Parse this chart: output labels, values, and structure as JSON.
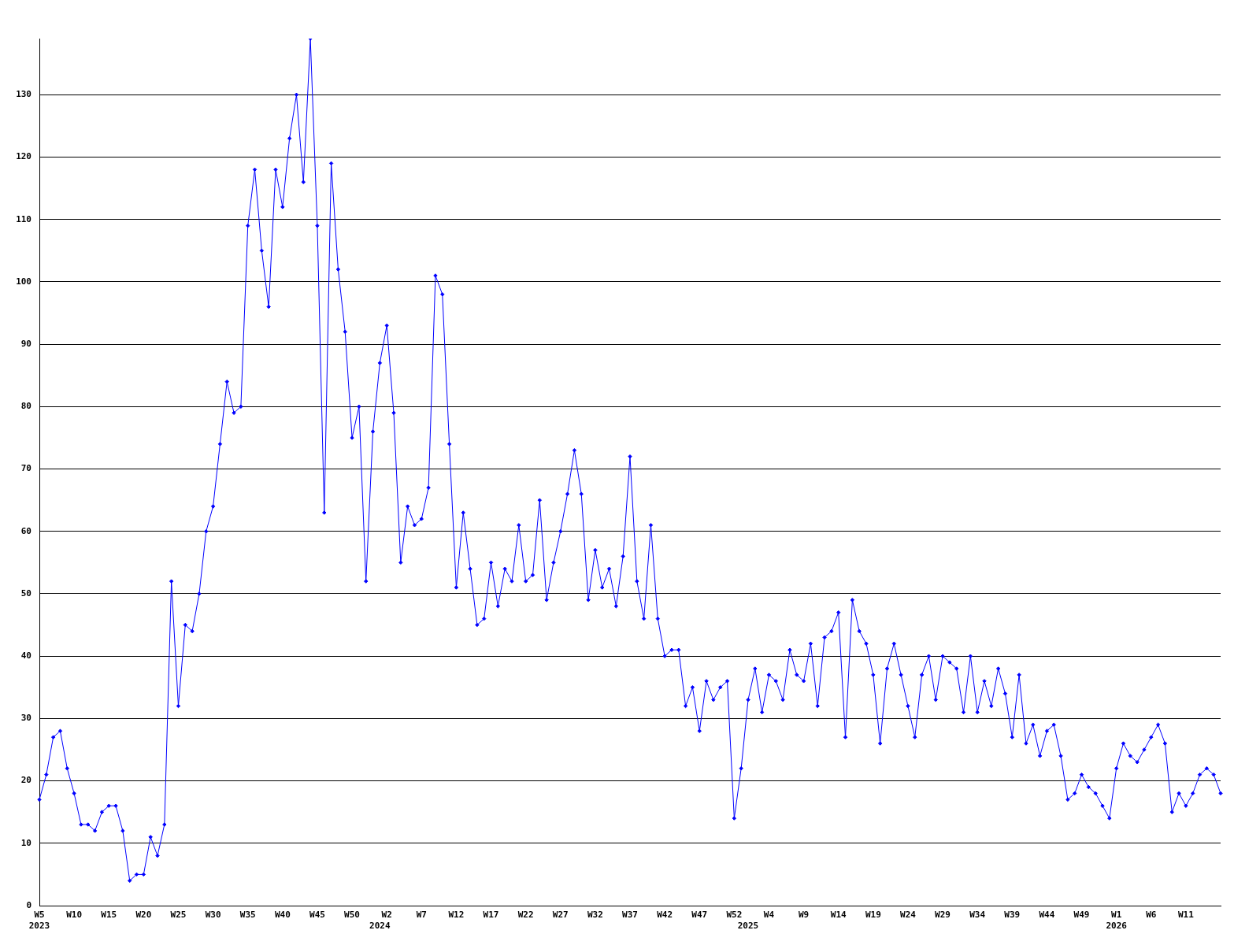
{
  "chart_data": {
    "type": "line",
    "categories": [
      "W5\n2023",
      null,
      null,
      null,
      null,
      "W10",
      null,
      null,
      null,
      null,
      "W15",
      null,
      null,
      null,
      null,
      "W20",
      null,
      null,
      null,
      null,
      "W25",
      null,
      null,
      null,
      null,
      "W30",
      null,
      null,
      null,
      null,
      "W35",
      null,
      null,
      null,
      null,
      "W40",
      null,
      null,
      null,
      null,
      "W45",
      null,
      null,
      null,
      null,
      "W50",
      null,
      null,
      null,
      "\n2024",
      "W2",
      null,
      null,
      null,
      null,
      "W7",
      null,
      null,
      null,
      null,
      "W12",
      null,
      null,
      null,
      null,
      "W17",
      null,
      null,
      null,
      null,
      "W22",
      null,
      null,
      null,
      null,
      "W27",
      null,
      null,
      null,
      null,
      "W32",
      null,
      null,
      null,
      null,
      "W37",
      null,
      null,
      null,
      null,
      "W42",
      null,
      null,
      null,
      null,
      "W47",
      null,
      null,
      null,
      null,
      "W52",
      null,
      "\n2025",
      null,
      null,
      "W4",
      null,
      null,
      null,
      null,
      "W9",
      null,
      null,
      null,
      null,
      "W14",
      null,
      null,
      null,
      null,
      "W19",
      null,
      null,
      null,
      null,
      "W24",
      null,
      null,
      null,
      null,
      "W29",
      null,
      null,
      null,
      null,
      "W34",
      null,
      null,
      null,
      null,
      "W39",
      null,
      null,
      null,
      null,
      "W44",
      null,
      null,
      null,
      null,
      "W49",
      null,
      null,
      null,
      null,
      "W1\n2026",
      null,
      null,
      null,
      null,
      "W6",
      null,
      null,
      null,
      null,
      "W11",
      null,
      null,
      null,
      null,
      null
    ],
    "series": [
      {
        "color": "#0000ff",
        "values": [
          17,
          21,
          27,
          28,
          22,
          18,
          13,
          13,
          12,
          15,
          16,
          16,
          12,
          4,
          5,
          5,
          11,
          8,
          13,
          52,
          32,
          45,
          44,
          50,
          60,
          64,
          74,
          84,
          79,
          80,
          109,
          118,
          105,
          96,
          118,
          112,
          123,
          130,
          116,
          139,
          109,
          63,
          119,
          102,
          92,
          75,
          80,
          52,
          76,
          87,
          93,
          79,
          55,
          64,
          61,
          62,
          67,
          101,
          98,
          74,
          51,
          63,
          54,
          45,
          46,
          55,
          48,
          54,
          52,
          61,
          52,
          53,
          65,
          49,
          55,
          60,
          66,
          73,
          66,
          49,
          57,
          51,
          54,
          48,
          56,
          72,
          52,
          46,
          61,
          46,
          40,
          41,
          41,
          32,
          35,
          28,
          36,
          33,
          35,
          36,
          14,
          22,
          33,
          38,
          31,
          37,
          36,
          33,
          41,
          37,
          36,
          42,
          32,
          43,
          44,
          47,
          27,
          49,
          44,
          42,
          37,
          26,
          38,
          42,
          37,
          32,
          27,
          37,
          40,
          33,
          40,
          39,
          38,
          31,
          40,
          31,
          36,
          32,
          38,
          34,
          27,
          37,
          26,
          29,
          24,
          28,
          29,
          24,
          17,
          18,
          21,
          19,
          18,
          16,
          14,
          22,
          26,
          24,
          23,
          25,
          27,
          29,
          26,
          15,
          18,
          16,
          18,
          21,
          22,
          21,
          18
        ]
      }
    ],
    "ylim": [
      0,
      139
    ],
    "yticks": [
      0,
      10,
      20,
      30,
      40,
      50,
      60,
      70,
      80,
      90,
      100,
      110,
      120,
      130
    ],
    "grid": "y",
    "marker": "diamond"
  }
}
